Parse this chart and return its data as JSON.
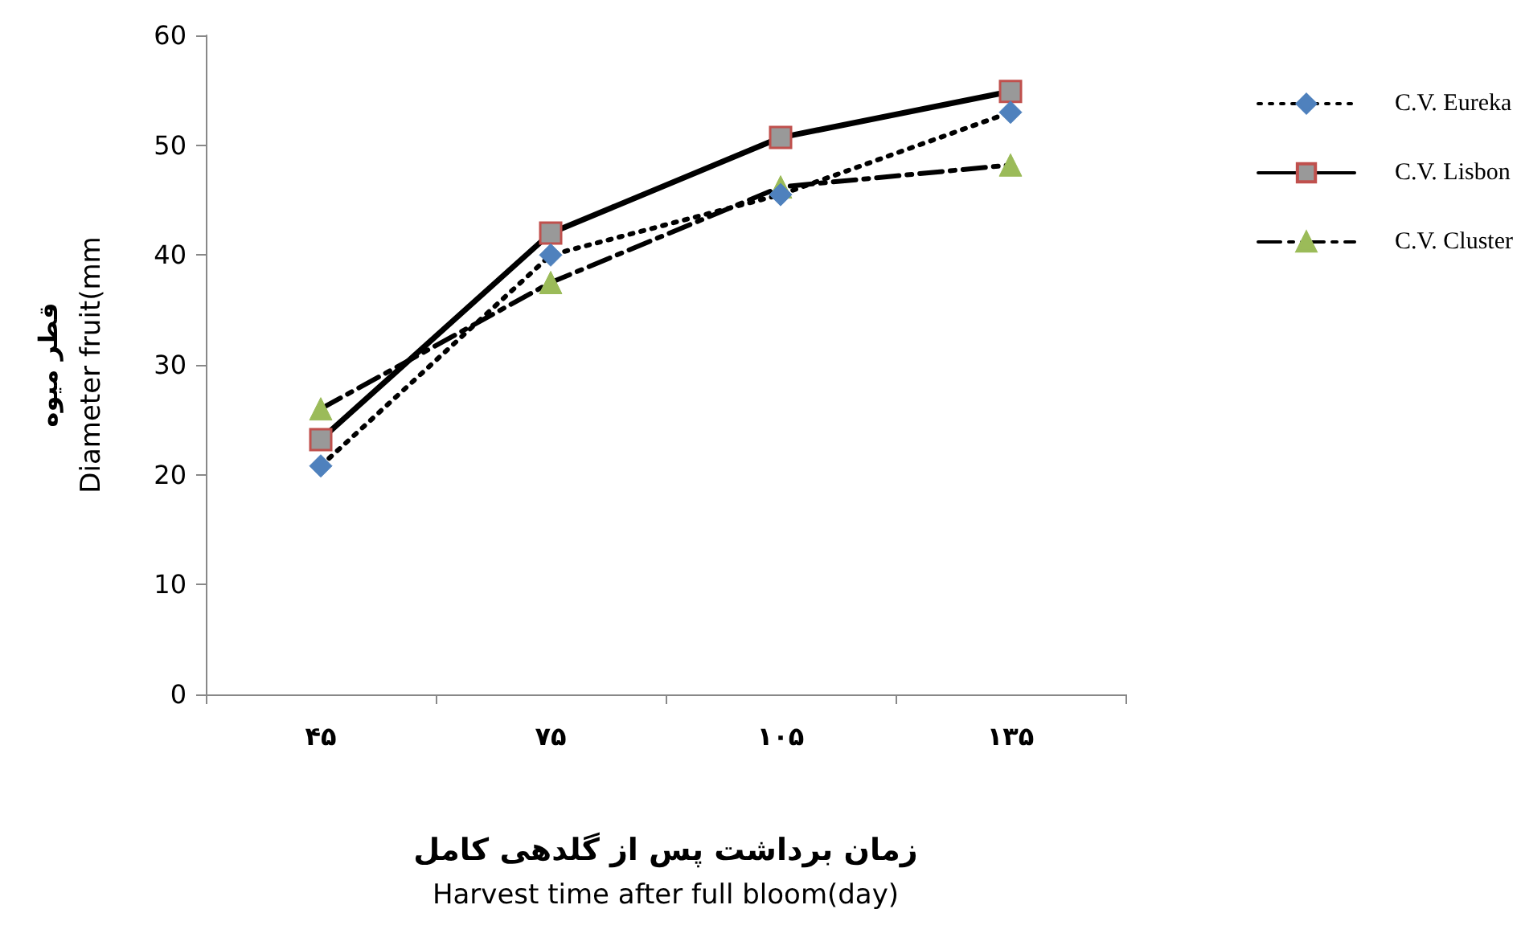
{
  "chart_data": {
    "type": "line",
    "xlabel": "زمان برداشت پس از گلدهی کامل\nHarvest time after full bloom(day)",
    "ylabel": "قطر میوه\nDiameter fruit(mm",
    "categories": [
      "۴۵",
      "۷۵",
      "۱۰۵",
      "۱۳۵"
    ],
    "series": [
      {
        "name": "C.V. Eureka",
        "color": "#4f81bd",
        "marker": "diamond",
        "line_style": "dotted",
        "values": [
          20.8,
          40,
          45.5,
          53
        ]
      },
      {
        "name": "C.V. Lisbon",
        "color": "#c0504d",
        "marker": "square",
        "line_style": "solid",
        "values": [
          23.2,
          42,
          50.7,
          54.9
        ]
      },
      {
        "name": "C.V. Cluster",
        "color": "#9bbb59",
        "marker": "triangle",
        "line_style": "dashdot",
        "values": [
          26,
          37.5,
          46.2,
          48.2
        ]
      }
    ],
    "ylim": [
      0,
      60
    ],
    "yticks": [
      0,
      10,
      20,
      30,
      40,
      50,
      60
    ],
    "grid": false,
    "legend": "right"
  }
}
